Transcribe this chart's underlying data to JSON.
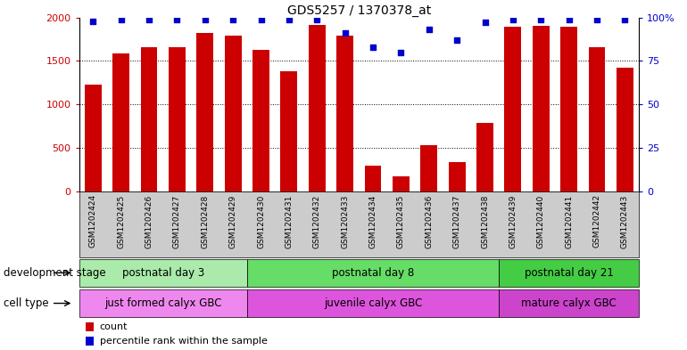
{
  "title": "GDS5257 / 1370378_at",
  "samples": [
    "GSM1202424",
    "GSM1202425",
    "GSM1202426",
    "GSM1202427",
    "GSM1202428",
    "GSM1202429",
    "GSM1202430",
    "GSM1202431",
    "GSM1202432",
    "GSM1202433",
    "GSM1202434",
    "GSM1202435",
    "GSM1202436",
    "GSM1202437",
    "GSM1202438",
    "GSM1202439",
    "GSM1202440",
    "GSM1202441",
    "GSM1202442",
    "GSM1202443"
  ],
  "counts": [
    1230,
    1590,
    1660,
    1660,
    1820,
    1790,
    1630,
    1380,
    1910,
    1790,
    290,
    165,
    530,
    335,
    790,
    1890,
    1900,
    1890,
    1660,
    1420
  ],
  "percentiles": [
    98,
    99,
    99,
    99,
    99,
    99,
    99,
    99,
    99,
    91,
    83,
    80,
    93,
    87,
    97,
    99,
    99,
    99,
    99,
    99
  ],
  "bar_color": "#cc0000",
  "dot_color": "#0000cc",
  "ylim_left": [
    0,
    2000
  ],
  "ylim_right": [
    0,
    100
  ],
  "yticks_left": [
    0,
    500,
    1000,
    1500,
    2000
  ],
  "yticks_right": [
    0,
    25,
    50,
    75,
    100
  ],
  "ytick_labels_right": [
    "0",
    "25",
    "50",
    "75",
    "100%"
  ],
  "grid_values": [
    500,
    1000,
    1500
  ],
  "groups": [
    {
      "label": "postnatal day 3",
      "start": 0,
      "end": 5,
      "color": "#aaeaaa"
    },
    {
      "label": "postnatal day 8",
      "start": 6,
      "end": 14,
      "color": "#66dd66"
    },
    {
      "label": "postnatal day 21",
      "start": 15,
      "end": 19,
      "color": "#44cc44"
    }
  ],
  "cell_types": [
    {
      "label": "just formed calyx GBC",
      "start": 0,
      "end": 5,
      "color": "#ee88ee"
    },
    {
      "label": "juvenile calyx GBC",
      "start": 6,
      "end": 14,
      "color": "#dd55dd"
    },
    {
      "label": "mature calyx GBC",
      "start": 15,
      "end": 19,
      "color": "#cc44cc"
    }
  ],
  "dev_stage_label": "development stage",
  "cell_type_label": "cell type",
  "legend_count_label": "count",
  "legend_pct_label": "percentile rank within the sample",
  "bar_color_legend": "#cc0000",
  "dot_color_legend": "#0000cc",
  "bg_color": "#ffffff",
  "sample_label_bg": "#cccccc",
  "fig_width": 7.7,
  "fig_height": 3.93
}
